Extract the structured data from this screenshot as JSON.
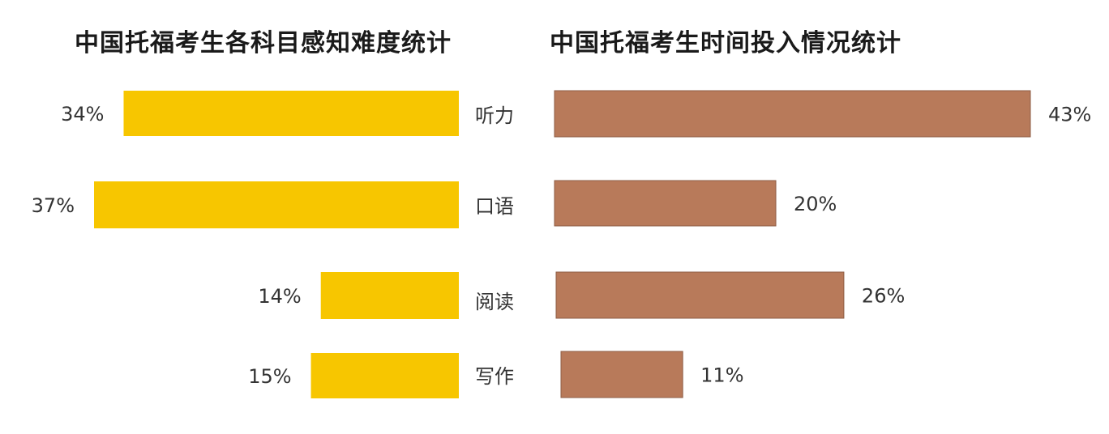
{
  "chart_data": [
    {
      "type": "bar",
      "orientation": "horizontal",
      "title": "中国托福考生各科目感知难度统计",
      "categories": [
        "听力",
        "口语",
        "阅读",
        "写作"
      ],
      "values": [
        34,
        37,
        14,
        15
      ],
      "value_labels": [
        "34%",
        "37%",
        "14%",
        "15%"
      ],
      "unit": "%",
      "color": "#F7C600",
      "direction": "right-to-left"
    },
    {
      "type": "bar",
      "orientation": "horizontal",
      "title": "中国托福考生时间投入情况统计",
      "categories": [
        "听力",
        "口语",
        "阅读",
        "写作"
      ],
      "values": [
        43,
        20,
        26,
        11
      ],
      "value_labels": [
        "43%",
        "20%",
        "26%",
        "11%"
      ],
      "unit": "%",
      "color": "#B87A5A",
      "edge_color": "#8E5D45",
      "direction": "left-to-right"
    }
  ]
}
